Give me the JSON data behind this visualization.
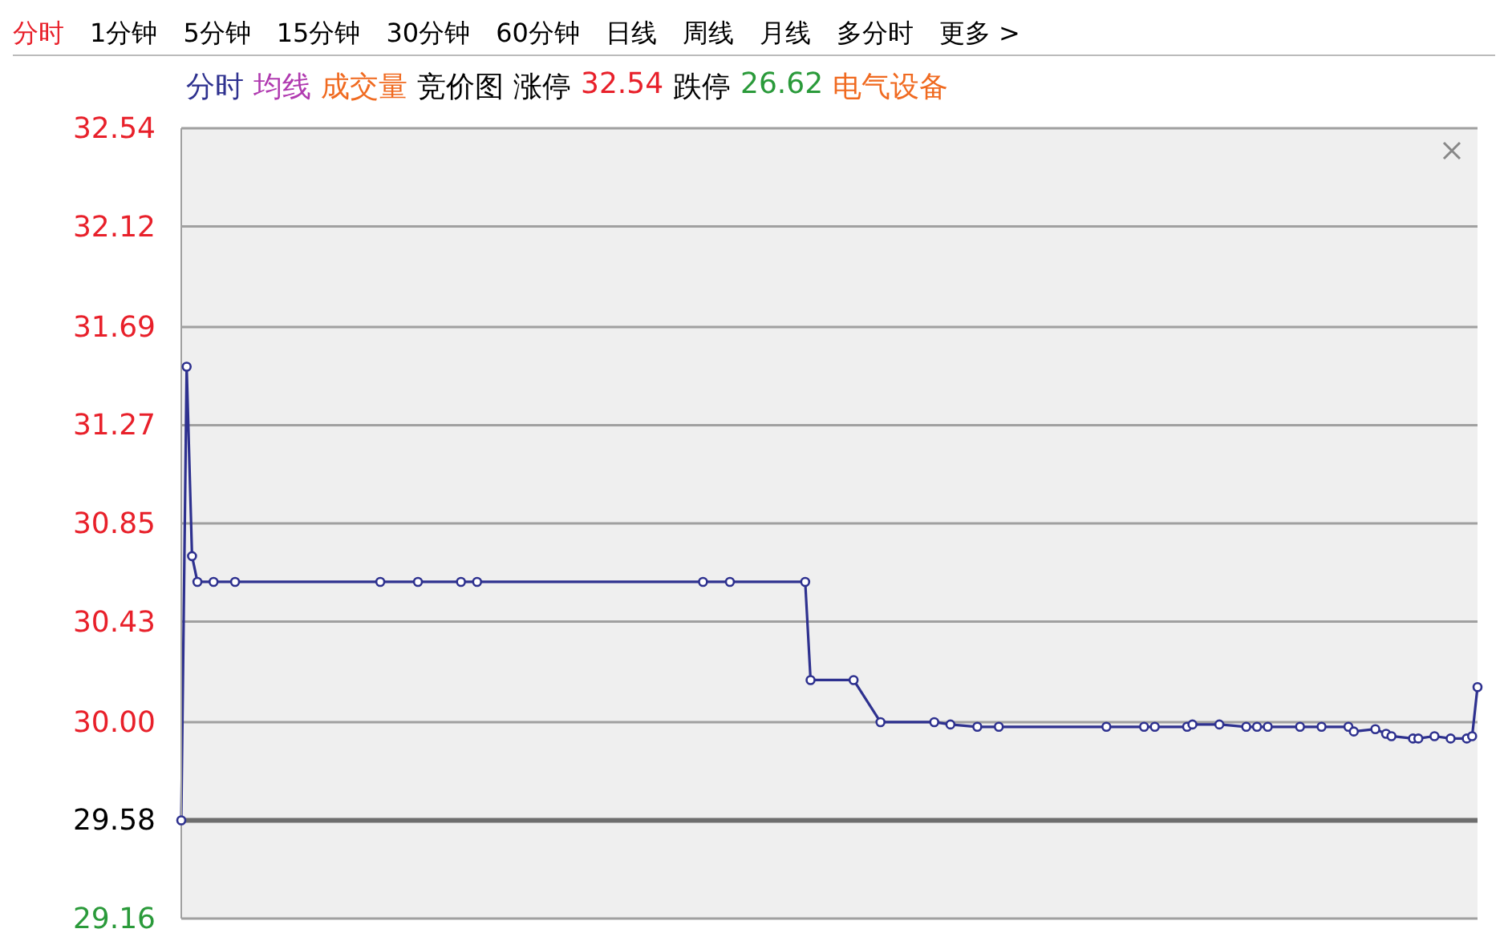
{
  "chart_data": {
    "type": "line",
    "categories": [
      null,
      null,
      null,
      null,
      null,
      null,
      null,
      null,
      null,
      null,
      null,
      null,
      null,
      null,
      null,
      null,
      null,
      null,
      null,
      null,
      null,
      null,
      null,
      null,
      null,
      null,
      null,
      null,
      null,
      null,
      null,
      null,
      null,
      null,
      null,
      null,
      null,
      null,
      null,
      null,
      null,
      null,
      null,
      null,
      null,
      null,
      null,
      null,
      null,
      null,
      null,
      null,
      null,
      null,
      null,
      null,
      null,
      null,
      null,
      null,
      null,
      null,
      null,
      null,
      null,
      null,
      null,
      null,
      null,
      null,
      null,
      null,
      null,
      null,
      null,
      null,
      null,
      null,
      null,
      null,
      null,
      null,
      null,
      null,
      null,
      null,
      null,
      null,
      null,
      null,
      null,
      null,
      null,
      null,
      null,
      null,
      null,
      null,
      null,
      null,
      null,
      null,
      null,
      null,
      null,
      null,
      null,
      null,
      null,
      null,
      null,
      null,
      null,
      null,
      null,
      null,
      null,
      null,
      null,
      null,
      null,
      null,
      null,
      null,
      null,
      null,
      null,
      null,
      null,
      null,
      null,
      null,
      null,
      null,
      null,
      null,
      null,
      null,
      null,
      null,
      null,
      null,
      null,
      null,
      null,
      null,
      null,
      null,
      null,
      null,
      null,
      null,
      null,
      null,
      null,
      null,
      null,
      null,
      null,
      null,
      null,
      null,
      null,
      null,
      null,
      null,
      null,
      null,
      null,
      null,
      null,
      null,
      null,
      null,
      null,
      null,
      null,
      null,
      null,
      null,
      null,
      null,
      null,
      null,
      null,
      null,
      null,
      null,
      null,
      null,
      null,
      null,
      null,
      null,
      null,
      null,
      null,
      null,
      null,
      null,
      null,
      null,
      null,
      null,
      null,
      null,
      null,
      null,
      null,
      null,
      null,
      null,
      null,
      null,
      null,
      null,
      null,
      null,
      null,
      null,
      null,
      null,
      null,
      null,
      null,
      null,
      null,
      null,
      null,
      null,
      null,
      null,
      null,
      null,
      null,
      null,
      null,
      null,
      null,
      null,
      null,
      null
    ],
    "series": [
      {
        "color": "#2e318f",
        "values": [
          29.58,
          31.52,
          30.71,
          30.6,
          null,
          null,
          30.6,
          null,
          null,
          null,
          30.6,
          null,
          null,
          null,
          null,
          null,
          null,
          null,
          null,
          null,
          null,
          null,
          null,
          null,
          null,
          null,
          null,
          null,
          null,
          null,
          null,
          null,
          null,
          null,
          null,
          null,
          null,
          30.6,
          null,
          null,
          null,
          null,
          null,
          null,
          30.6,
          null,
          null,
          null,
          null,
          null,
          null,
          null,
          30.6,
          null,
          null,
          30.6,
          null,
          null,
          null,
          null,
          null,
          null,
          null,
          null,
          null,
          null,
          null,
          null,
          null,
          null,
          null,
          null,
          null,
          null,
          null,
          null,
          null,
          null,
          null,
          null,
          null,
          null,
          null,
          null,
          null,
          null,
          null,
          null,
          null,
          null,
          null,
          null,
          null,
          null,
          null,
          null,
          null,
          30.6,
          null,
          null,
          null,
          null,
          30.6,
          null,
          null,
          null,
          null,
          null,
          null,
          null,
          null,
          null,
          null,
          null,
          null,
          null,
          30.6,
          30.18,
          null,
          null,
          null,
          null,
          null,
          null,
          null,
          30.18,
          null,
          null,
          null,
          null,
          30.0,
          null,
          null,
          null,
          null,
          null,
          null,
          null,
          null,
          null,
          30.0,
          null,
          null,
          29.99,
          null,
          null,
          null,
          null,
          29.98,
          null,
          null,
          null,
          29.98,
          null,
          null,
          null,
          null,
          null,
          null,
          null,
          null,
          null,
          null,
          null,
          null,
          null,
          null,
          null,
          null,
          null,
          null,
          null,
          29.98,
          null,
          null,
          null,
          null,
          null,
          null,
          29.98,
          null,
          29.98,
          null,
          null,
          null,
          null,
          null,
          29.98,
          29.99,
          null,
          null,
          null,
          null,
          29.99,
          null,
          null,
          null,
          null,
          29.98,
          null,
          29.98,
          null,
          29.98,
          null,
          null,
          null,
          null,
          null,
          29.98,
          null,
          null,
          null,
          29.98,
          null,
          null,
          null,
          null,
          29.98,
          29.96,
          null,
          null,
          null,
          29.97,
          null,
          29.95,
          29.94,
          null,
          null,
          null,
          29.93,
          29.93,
          null,
          null,
          29.94,
          null,
          null,
          29.93,
          null,
          null,
          29.93,
          29.94,
          30.15
        ]
      }
    ],
    "ylim": [
      29.16,
      32.54
    ],
    "yticks": [
      29.16,
      29.58,
      {
        "value": 30,
        "label": "30.00"
      },
      30.43,
      30.85,
      31.27,
      31.69,
      32.12,
      32.54
    ],
    "grid": "y",
    "marker": "circle",
    "line_style": "solid",
    "ref_lines": [
      {
        "axis": "y",
        "value": 29.58,
        "color": "#6e6e6e"
      }
    ],
    "annotations": [
      "分时",
      "1分钟",
      "5分钟",
      "15分钟",
      "30分钟",
      "60分钟",
      "日线",
      "周线",
      "月线",
      "多分时",
      "更多 >",
      "分时",
      "均线",
      "成交量",
      "竞价图",
      "涨停",
      "32.54",
      "跌停",
      "26.62",
      "电气设备"
    ]
  }
}
